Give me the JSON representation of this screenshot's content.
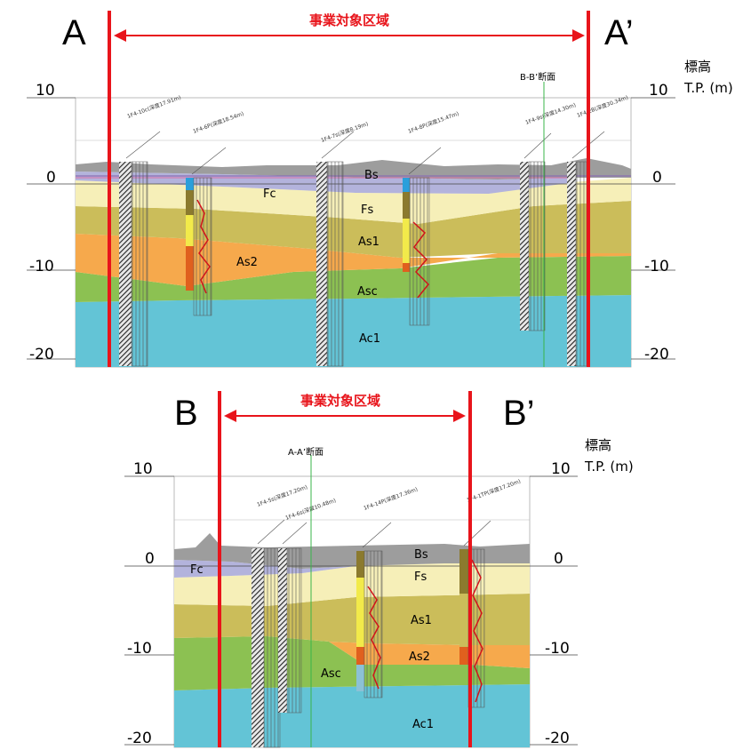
{
  "colors": {
    "boundary": "#e8141b",
    "Bs": "#9d9d9d",
    "Fc": "#b3b3dc",
    "Fs": "#f6efb8",
    "As1": "#cbbd5a",
    "As2": "#f6a94c",
    "Asc": "#8cc152",
    "Ac1": "#63c4d6"
  },
  "units_label_line1": "標高",
  "units_label_line2": "T.P. (m)",
  "section_A": {
    "left_marker": "A",
    "right_marker": "A’",
    "area_label": "事業対象区域",
    "cross_section_ref": "B-B’断面",
    "ticks": [
      "10",
      "0",
      "-10",
      "-20"
    ],
    "layer_labels": [
      "Bs",
      "Fc",
      "Fs",
      "As1",
      "As2",
      "Asc",
      "Ac1"
    ]
  },
  "section_B": {
    "left_marker": "B",
    "right_marker": "B’",
    "area_label": "事業対象区域",
    "cross_section_ref": "A-A’断面",
    "ticks": [
      "10",
      "0",
      "-10",
      "-20"
    ],
    "layer_labels": [
      "Bs",
      "Fc",
      "Fs",
      "As1",
      "As2",
      "Asc",
      "Ac1"
    ]
  }
}
